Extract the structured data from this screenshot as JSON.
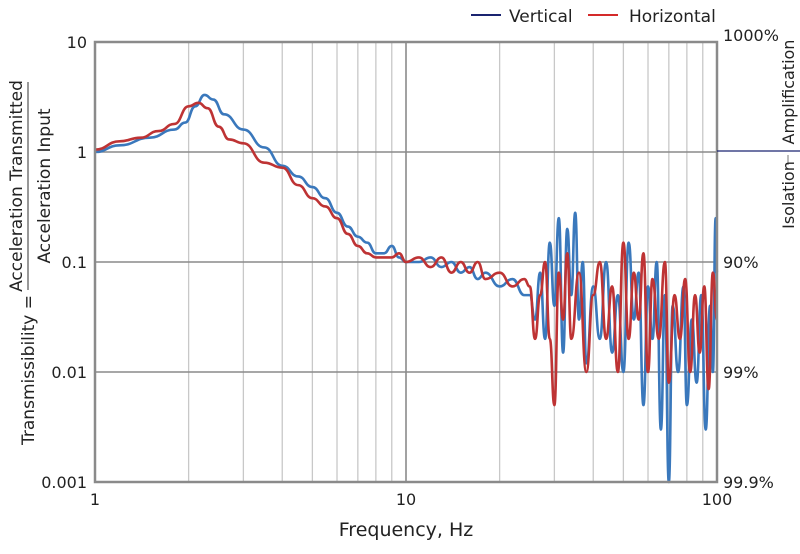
{
  "chart_data": {
    "type": "line",
    "xscale": "log",
    "yscale": "log",
    "xlabel": "Frequency, Hz",
    "ylabel_prefix": "Transmissibility =",
    "ylabel_numerator": "Acceleration Transmitted",
    "ylabel_denominator": "Acceleration Input",
    "xlim": [
      1,
      100
    ],
    "ylim": [
      0.001,
      10
    ],
    "x_ticks": [
      {
        "v": 1,
        "label": "1"
      },
      {
        "v": 10,
        "label": "10"
      },
      {
        "v": 100,
        "label": "100"
      }
    ],
    "y_ticks": [
      {
        "v": 10,
        "label": "10"
      },
      {
        "v": 1,
        "label": "1"
      },
      {
        "v": 0.1,
        "label": "0.1"
      },
      {
        "v": 0.01,
        "label": "0.01"
      },
      {
        "v": 0.001,
        "label": "0.001"
      }
    ],
    "right_ticks": [
      {
        "v": 10,
        "label": "1000%"
      },
      {
        "v": 0.1,
        "label": "90%"
      },
      {
        "v": 0.01,
        "label": "99%"
      },
      {
        "v": 0.001,
        "label": "99.9%"
      }
    ],
    "right_labels": {
      "upper": "Amplification",
      "lower": "Isolation"
    },
    "grid": true,
    "legend_position": "top-right",
    "legend": [
      {
        "name": "Vertical",
        "color": "#1a2470"
      },
      {
        "name": "Horizontal",
        "color": "#d42a2a"
      }
    ],
    "series": [
      {
        "name": "Vertical",
        "color": "#3a78bc",
        "points": [
          [
            1,
            1.0
          ],
          [
            1.2,
            1.15
          ],
          [
            1.5,
            1.35
          ],
          [
            1.8,
            1.6
          ],
          [
            1.95,
            1.85
          ],
          [
            2.1,
            2.6
          ],
          [
            2.25,
            3.3
          ],
          [
            2.4,
            3.0
          ],
          [
            2.6,
            2.2
          ],
          [
            3,
            1.6
          ],
          [
            3.5,
            1.1
          ],
          [
            4,
            0.75
          ],
          [
            4.5,
            0.6
          ],
          [
            5,
            0.48
          ],
          [
            5.5,
            0.38
          ],
          [
            6,
            0.28
          ],
          [
            6.5,
            0.21
          ],
          [
            7,
            0.17
          ],
          [
            7.5,
            0.15
          ],
          [
            8,
            0.12
          ],
          [
            8.5,
            0.12
          ],
          [
            9,
            0.14
          ],
          [
            9.5,
            0.11
          ],
          [
            10,
            0.1
          ],
          [
            11,
            0.1
          ],
          [
            12,
            0.11
          ],
          [
            13,
            0.09
          ],
          [
            14,
            0.1
          ],
          [
            15,
            0.08
          ],
          [
            16,
            0.09
          ],
          [
            17,
            0.07
          ],
          [
            18,
            0.08
          ],
          [
            20,
            0.06
          ],
          [
            22,
            0.07
          ],
          [
            24,
            0.05
          ],
          [
            25,
            0.05
          ],
          [
            26,
            0.03
          ],
          [
            27,
            0.08
          ],
          [
            28,
            0.02
          ],
          [
            29,
            0.15
          ],
          [
            30,
            0.04
          ],
          [
            31,
            0.25
          ],
          [
            32,
            0.015
          ],
          [
            33,
            0.2
          ],
          [
            34,
            0.05
          ],
          [
            35,
            0.28
          ],
          [
            36,
            0.03
          ],
          [
            37,
            0.1
          ],
          [
            38,
            0.012
          ],
          [
            40,
            0.06
          ],
          [
            42,
            0.02
          ],
          [
            44,
            0.1
          ],
          [
            46,
            0.015
          ],
          [
            48,
            0.05
          ],
          [
            50,
            0.01
          ],
          [
            52,
            0.15
          ],
          [
            54,
            0.03
          ],
          [
            56,
            0.08
          ],
          [
            58,
            0.005
          ],
          [
            60,
            0.06
          ],
          [
            62,
            0.02
          ],
          [
            64,
            0.1
          ],
          [
            66,
            0.003
          ],
          [
            68,
            0.05
          ],
          [
            70,
            0.001
          ],
          [
            72,
            0.04
          ],
          [
            75,
            0.01
          ],
          [
            78,
            0.06
          ],
          [
            80,
            0.005
          ],
          [
            83,
            0.03
          ],
          [
            86,
            0.008
          ],
          [
            89,
            0.05
          ],
          [
            92,
            0.003
          ],
          [
            95,
            0.04
          ],
          [
            97,
            0.01
          ],
          [
            99,
            0.25
          ],
          [
            100,
            0.08
          ]
        ]
      },
      {
        "name": "Horizontal",
        "color": "#be3334",
        "points": [
          [
            1,
            1.05
          ],
          [
            1.2,
            1.25
          ],
          [
            1.4,
            1.35
          ],
          [
            1.6,
            1.55
          ],
          [
            1.8,
            1.8
          ],
          [
            2,
            2.6
          ],
          [
            2.15,
            2.8
          ],
          [
            2.3,
            2.5
          ],
          [
            2.5,
            1.7
          ],
          [
            2.7,
            1.3
          ],
          [
            3,
            1.2
          ],
          [
            3.5,
            0.8
          ],
          [
            4,
            0.72
          ],
          [
            4.5,
            0.5
          ],
          [
            5,
            0.38
          ],
          [
            5.5,
            0.32
          ],
          [
            6,
            0.25
          ],
          [
            6.5,
            0.18
          ],
          [
            7,
            0.14
          ],
          [
            7.5,
            0.12
          ],
          [
            8,
            0.11
          ],
          [
            9,
            0.11
          ],
          [
            9.5,
            0.12
          ],
          [
            10,
            0.1
          ],
          [
            11,
            0.11
          ],
          [
            12,
            0.09
          ],
          [
            13,
            0.11
          ],
          [
            14,
            0.08
          ],
          [
            15,
            0.1
          ],
          [
            16,
            0.08
          ],
          [
            17,
            0.1
          ],
          [
            18,
            0.07
          ],
          [
            20,
            0.08
          ],
          [
            22,
            0.06
          ],
          [
            24,
            0.07
          ],
          [
            25,
            0.06
          ],
          [
            26,
            0.02
          ],
          [
            27,
            0.05
          ],
          [
            28,
            0.1
          ],
          [
            29,
            0.02
          ],
          [
            30,
            0.005
          ],
          [
            31,
            0.08
          ],
          [
            32,
            0.03
          ],
          [
            33,
            0.12
          ],
          [
            34,
            0.02
          ],
          [
            36,
            0.08
          ],
          [
            38,
            0.01
          ],
          [
            40,
            0.05
          ],
          [
            42,
            0.1
          ],
          [
            44,
            0.02
          ],
          [
            46,
            0.06
          ],
          [
            48,
            0.01
          ],
          [
            50,
            0.15
          ],
          [
            52,
            0.02
          ],
          [
            54,
            0.08
          ],
          [
            56,
            0.03
          ],
          [
            58,
            0.12
          ],
          [
            60,
            0.01
          ],
          [
            62,
            0.07
          ],
          [
            65,
            0.02
          ],
          [
            68,
            0.1
          ],
          [
            70,
            0.008
          ],
          [
            73,
            0.05
          ],
          [
            76,
            0.02
          ],
          [
            79,
            0.07
          ],
          [
            82,
            0.01
          ],
          [
            85,
            0.05
          ],
          [
            88,
            0.015
          ],
          [
            91,
            0.06
          ],
          [
            94,
            0.007
          ],
          [
            97,
            0.08
          ],
          [
            100,
            0.03
          ]
        ]
      }
    ]
  }
}
